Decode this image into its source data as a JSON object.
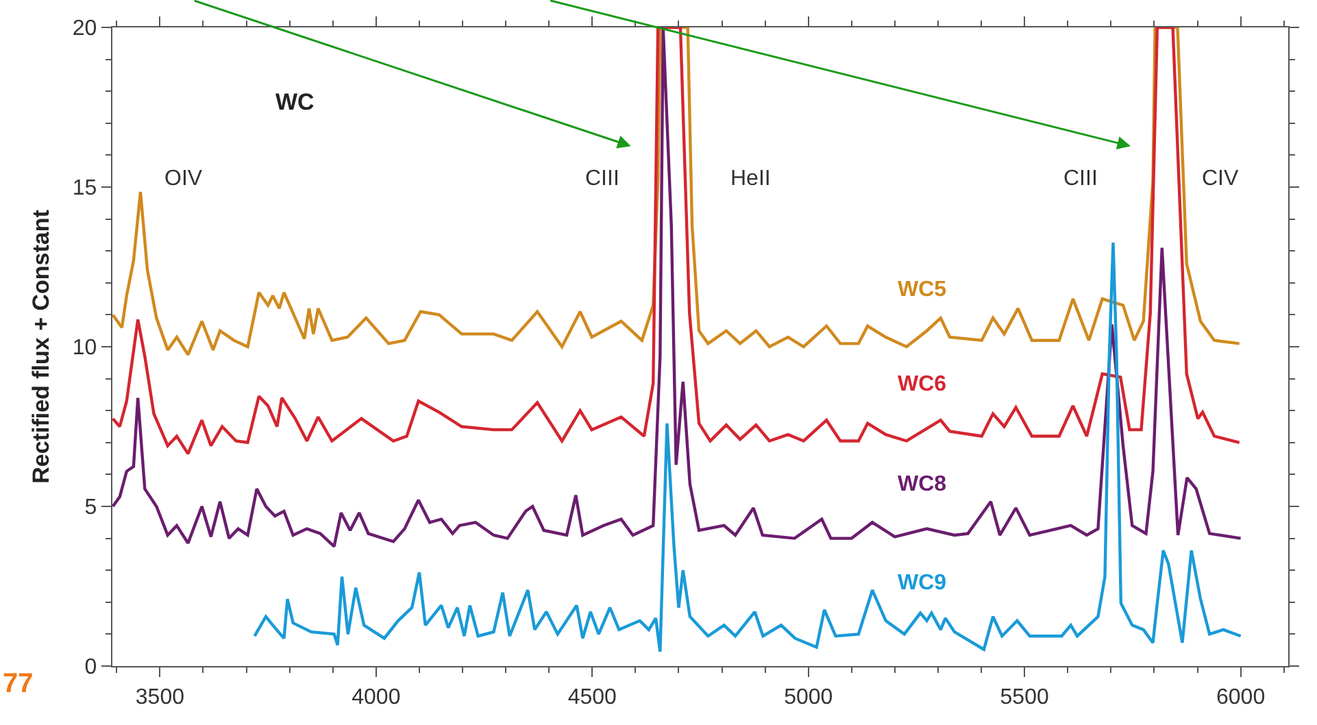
{
  "chart_data": {
    "type": "line",
    "ylabel": "Rectified flux + Constant",
    "xlim": [
      3390,
      6110
    ],
    "ylim": [
      0,
      20
    ],
    "xticks": [
      3500,
      4000,
      4500,
      5000,
      5500,
      6000
    ],
    "yticks": [
      0,
      5,
      10,
      15,
      20
    ],
    "legend": false,
    "annotations": [
      "WC",
      "OIV",
      "CIII",
      "HeII",
      "CIII",
      "CIV",
      "77"
    ],
    "series": [
      {
        "name": "WC5",
        "color": "#d08a1e",
        "x": [
          3391,
          3412,
          3423,
          3439,
          3455,
          3471,
          3492,
          3518,
          3539,
          3565,
          3597,
          3623,
          3639,
          3671,
          3703,
          3729,
          3750,
          3761,
          3776,
          3787,
          3834,
          3845,
          3855,
          3866,
          3898,
          3934,
          3977,
          4029,
          4066,
          4103,
          4146,
          4198,
          4272,
          4314,
          4373,
          4430,
          4472,
          4499,
          4567,
          4615,
          4641,
          4652,
          4657,
          4721,
          4731,
          4747,
          4768,
          4810,
          4842,
          4879,
          4910,
          4953,
          4989,
          5042,
          5074,
          5116,
          5137,
          5179,
          5227,
          5274,
          5306,
          5327,
          5401,
          5427,
          5453,
          5485,
          5517,
          5580,
          5612,
          5649,
          5680,
          5728,
          5754,
          5775,
          5797,
          5802,
          5854,
          5875,
          5907,
          5939,
          5997
        ],
        "values": [
          11.0,
          10.6,
          11.6,
          12.7,
          14.85,
          12.4,
          10.9,
          9.9,
          10.3,
          9.75,
          10.8,
          9.9,
          10.5,
          10.2,
          10.0,
          11.7,
          11.3,
          11.6,
          11.2,
          11.7,
          10.25,
          11.2,
          10.4,
          11.2,
          10.2,
          10.3,
          10.9,
          10.1,
          10.2,
          11.1,
          11.0,
          10.4,
          10.4,
          10.2,
          11.1,
          10.0,
          11.1,
          10.3,
          10.8,
          10.2,
          11.3,
          15.2,
          20,
          20,
          13.8,
          10.5,
          10.1,
          10.5,
          10.1,
          10.5,
          10.0,
          10.3,
          10.0,
          10.65,
          10.1,
          10.1,
          10.65,
          10.3,
          10.0,
          10.5,
          10.9,
          10.3,
          10.2,
          10.9,
          10.4,
          11.2,
          10.2,
          10.2,
          11.5,
          10.2,
          11.5,
          11.3,
          10.2,
          10.8,
          15.2,
          20,
          20,
          12.6,
          10.8,
          10.2,
          10.1
        ]
      },
      {
        "name": "WC6",
        "color": "#d42630",
        "x": [
          3391,
          3407,
          3423,
          3449,
          3465,
          3486,
          3518,
          3539,
          3565,
          3597,
          3618,
          3644,
          3676,
          3703,
          3729,
          3750,
          3771,
          3782,
          3813,
          3840,
          3866,
          3898,
          3966,
          4040,
          4071,
          4098,
          4146,
          4198,
          4272,
          4314,
          4373,
          4430,
          4472,
          4499,
          4567,
          4620,
          4641,
          4652,
          4704,
          4725,
          4747,
          4773,
          4810,
          4842,
          4879,
          4910,
          4953,
          4989,
          5042,
          5074,
          5116,
          5137,
          5179,
          5227,
          5306,
          5327,
          5401,
          5427,
          5453,
          5480,
          5517,
          5580,
          5612,
          5644,
          5680,
          5722,
          5743,
          5770,
          5791,
          5807,
          5843,
          5875,
          5901,
          5912,
          5939,
          5997
        ],
        "values": [
          7.75,
          7.5,
          8.3,
          10.85,
          9.7,
          7.9,
          6.9,
          7.2,
          6.65,
          7.7,
          6.9,
          7.5,
          7.05,
          7.0,
          8.45,
          8.15,
          7.5,
          8.4,
          7.75,
          7.05,
          7.8,
          7.05,
          7.75,
          7.05,
          7.2,
          8.3,
          7.95,
          7.5,
          7.4,
          7.4,
          8.25,
          7.05,
          8.0,
          7.4,
          7.8,
          7.2,
          8.85,
          20,
          20,
          11.05,
          7.6,
          7.05,
          7.55,
          7.1,
          7.55,
          7.05,
          7.25,
          7.05,
          7.7,
          7.05,
          7.05,
          7.6,
          7.25,
          7.05,
          7.7,
          7.35,
          7.2,
          7.9,
          7.5,
          8.1,
          7.2,
          7.2,
          8.15,
          7.2,
          9.15,
          9.05,
          7.4,
          7.4,
          11.05,
          20,
          20,
          9.15,
          7.75,
          7.95,
          7.2,
          7.0
        ]
      },
      {
        "name": "WC8",
        "color": "#6a1d6e",
        "x": [
          3391,
          3407,
          3423,
          3439,
          3449,
          3465,
          3492,
          3518,
          3539,
          3565,
          3597,
          3618,
          3639,
          3660,
          3681,
          3703,
          3724,
          3745,
          3766,
          3787,
          3808,
          3840,
          3871,
          3903,
          3919,
          3940,
          3961,
          3982,
          4040,
          4066,
          4098,
          4124,
          4151,
          4177,
          4193,
          4230,
          4272,
          4304,
          4346,
          4362,
          4388,
          4441,
          4462,
          4478,
          4526,
          4567,
          4594,
          4641,
          4657,
          4664,
          4683,
          4694,
          4710,
          4726,
          4747,
          4805,
          4831,
          4873,
          4894,
          4968,
          5031,
          5052,
          5100,
          5148,
          5200,
          5274,
          5338,
          5369,
          5422,
          5443,
          5480,
          5512,
          5607,
          5644,
          5670,
          5702,
          5728,
          5749,
          5781,
          5797,
          5818,
          5855,
          5876,
          5897,
          5928,
          6000
        ],
        "values": [
          5.0,
          5.3,
          6.1,
          6.25,
          8.4,
          5.55,
          5.0,
          4.1,
          4.4,
          3.85,
          5.0,
          4.05,
          5.15,
          4.0,
          4.3,
          4.1,
          5.55,
          5.0,
          4.7,
          4.85,
          4.1,
          4.3,
          4.15,
          3.75,
          4.8,
          4.25,
          4.8,
          4.15,
          3.9,
          4.3,
          5.2,
          4.5,
          4.6,
          4.15,
          4.4,
          4.5,
          4.1,
          4.0,
          4.85,
          5.0,
          4.25,
          4.1,
          5.35,
          4.1,
          4.4,
          4.6,
          4.1,
          4.4,
          9.7,
          20,
          13.8,
          6.3,
          8.9,
          5.7,
          4.25,
          4.4,
          4.1,
          4.95,
          4.1,
          4.0,
          4.6,
          4.0,
          4.0,
          4.5,
          4.05,
          4.3,
          4.1,
          4.15,
          5.15,
          4.1,
          4.95,
          4.1,
          4.4,
          4.1,
          4.3,
          10.7,
          6.9,
          4.4,
          4.15,
          6.1,
          13.1,
          4.1,
          5.9,
          5.55,
          4.15,
          4.0
        ]
      },
      {
        "name": "WC9",
        "color": "#1a9ad8",
        "x": [
          3719,
          3745,
          3766,
          3787,
          3795,
          3808,
          3850,
          3903,
          3911,
          3921,
          3935,
          3953,
          3972,
          4019,
          4051,
          4083,
          4100,
          4114,
          4151,
          4167,
          4188,
          4204,
          4217,
          4236,
          4272,
          4293,
          4309,
          4351,
          4367,
          4394,
          4420,
          4464,
          4478,
          4496,
          4515,
          4541,
          4562,
          4610,
          4631,
          4647,
          4657,
          4673,
          4689,
          4700,
          4710,
          4726,
          4768,
          4805,
          4831,
          4876,
          4895,
          4937,
          4969,
          5019,
          5037,
          5063,
          5116,
          5148,
          5179,
          5222,
          5259,
          5274,
          5285,
          5306,
          5317,
          5338,
          5406,
          5427,
          5448,
          5483,
          5512,
          5586,
          5607,
          5622,
          5670,
          5686,
          5696,
          5705,
          5713,
          5723,
          5749,
          5775,
          5797,
          5807,
          5821,
          5833,
          5865,
          5886,
          5907,
          5928,
          5960,
          6000
        ],
        "values": [
          0.94,
          1.55,
          1.2,
          0.87,
          2.1,
          1.35,
          1.07,
          1.0,
          0.66,
          2.8,
          1.0,
          2.45,
          1.28,
          0.87,
          1.42,
          1.83,
          2.93,
          1.28,
          1.9,
          1.2,
          1.83,
          0.94,
          1.9,
          0.94,
          1.07,
          2.3,
          0.94,
          2.38,
          1.14,
          1.7,
          1.0,
          1.9,
          0.87,
          1.7,
          1.0,
          1.83,
          1.14,
          1.42,
          1.14,
          1.5,
          0.45,
          7.6,
          3.76,
          1.83,
          3.0,
          1.55,
          0.94,
          1.28,
          0.94,
          1.7,
          0.94,
          1.28,
          0.87,
          0.59,
          1.76,
          0.94,
          1.0,
          2.38,
          1.42,
          1.0,
          1.66,
          1.42,
          1.66,
          1.14,
          1.5,
          1.07,
          0.52,
          1.55,
          0.94,
          1.42,
          0.94,
          0.94,
          1.28,
          0.94,
          1.55,
          2.8,
          9.7,
          13.26,
          9.7,
          1.97,
          1.28,
          1.14,
          0.73,
          1.97,
          3.62,
          3.2,
          0.73,
          3.62,
          2.1,
          1.0,
          1.14,
          0.94
        ]
      }
    ]
  }
}
